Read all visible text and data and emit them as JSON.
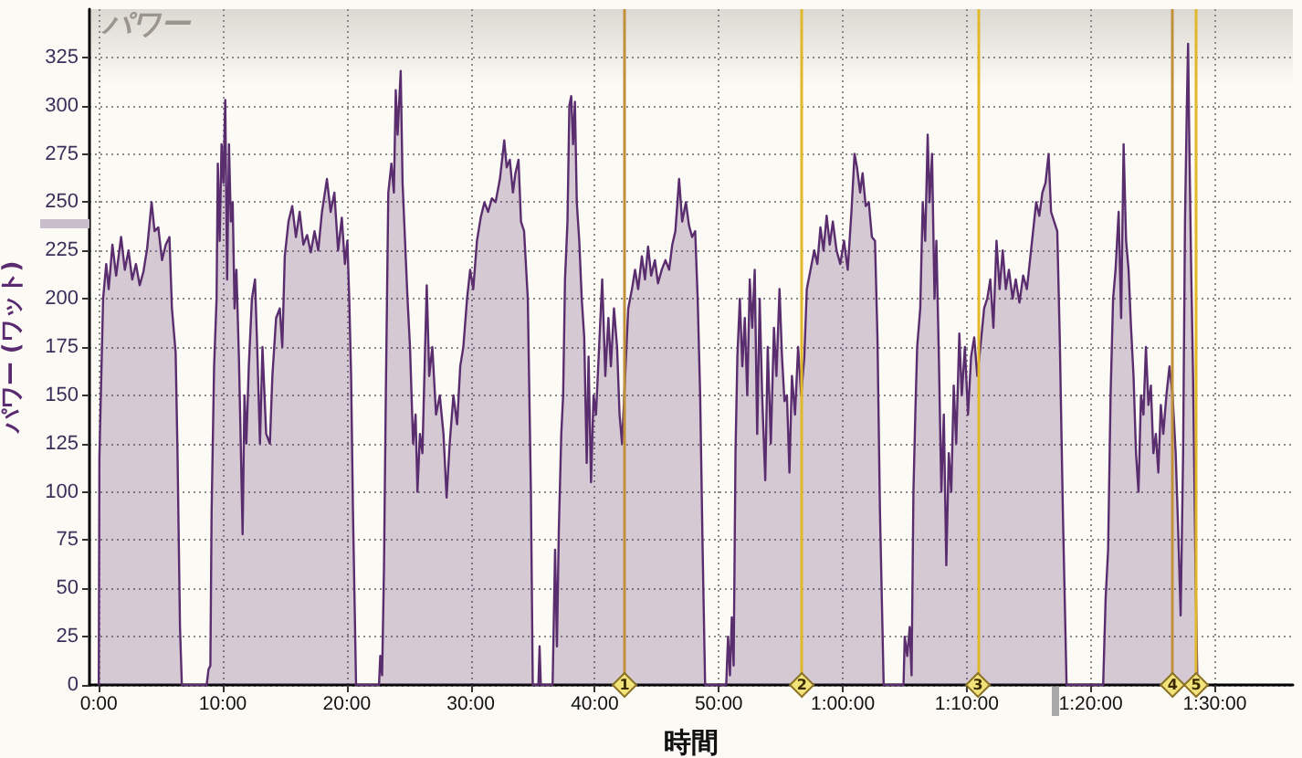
{
  "chart_data": {
    "type": "area",
    "title": "パワー",
    "xlabel": "時間",
    "ylabel": "パワー (ワット)",
    "x": [
      0,
      0.05,
      0.35,
      0.6,
      0.8,
      1.1,
      1.4,
      1.8,
      2.1,
      2.4,
      2.7,
      3.0,
      3.3,
      3.6,
      3.9,
      4.26,
      4.5,
      4.8,
      5.1,
      5.4,
      5.7,
      5.9,
      6.2,
      6.35,
      6.55,
      6.7,
      8.7,
      8.85,
      9.0,
      9.1,
      9.3,
      9.5,
      9.6,
      9.75,
      9.9,
      10.05,
      10.2,
      10.35,
      10.5,
      10.65,
      10.8,
      10.95,
      11.1,
      11.3,
      11.45,
      11.6,
      11.75,
      11.9,
      12.1,
      12.35,
      12.6,
      12.8,
      13.0,
      13.2,
      13.5,
      13.8,
      14.0,
      14.3,
      14.6,
      14.8,
      15.0,
      15.3,
      15.6,
      15.9,
      16.2,
      16.5,
      16.8,
      17.1,
      17.4,
      17.7,
      18.0,
      18.4,
      18.7,
      19.0,
      19.3,
      19.6,
      19.85,
      20.05,
      20.2,
      20.35,
      20.5,
      20.75,
      22.6,
      22.7,
      22.85,
      23.0,
      23.15,
      23.35,
      23.6,
      23.8,
      23.95,
      24.1,
      24.35,
      24.5,
      24.7,
      24.9,
      25.1,
      25.35,
      25.55,
      25.7,
      25.9,
      26.1,
      26.3,
      26.45,
      26.65,
      26.9,
      27.2,
      27.5,
      27.8,
      28.05,
      28.3,
      28.6,
      28.9,
      29.15,
      29.4,
      29.7,
      29.95,
      30.2,
      30.5,
      30.8,
      31.1,
      31.4,
      31.7,
      32.0,
      32.35,
      32.7,
      32.9,
      33.15,
      33.4,
      33.6,
      33.85,
      34.05,
      34.3,
      34.6,
      34.85,
      35.0,
      35.45,
      35.55,
      35.65,
      36.6,
      36.8,
      36.95,
      37.1,
      37.3,
      37.45,
      37.6,
      37.8,
      37.95,
      38.1,
      38.25,
      38.4,
      38.55,
      38.75,
      38.95,
      39.15,
      39.35,
      39.5,
      39.7,
      39.9,
      40.1,
      40.35,
      40.6,
      40.85,
      41.1,
      41.3,
      41.55,
      41.8,
      42.0,
      42.2,
      42.45,
      42.7,
      43.0,
      43.25,
      43.5,
      43.8,
      44.05,
      44.3,
      44.55,
      44.85,
      45.1,
      45.4,
      45.7,
      46.0,
      46.25,
      46.5,
      46.8,
      47.05,
      47.35,
      47.6,
      47.85,
      48.1,
      48.3,
      48.5,
      48.7,
      48.9,
      50.6,
      50.75,
      50.9,
      51.05,
      51.2,
      51.35,
      51.5,
      51.7,
      51.9,
      52.1,
      52.3,
      52.5,
      52.7,
      52.9,
      53.1,
      53.3,
      53.5,
      53.75,
      53.95,
      54.2,
      54.45,
      54.65,
      54.9,
      55.1,
      55.3,
      55.5,
      55.7,
      55.9,
      56.15,
      56.4,
      56.65,
      56.9,
      57.1,
      57.4,
      57.7,
      57.95,
      58.2,
      58.45,
      58.7,
      58.95,
      59.2,
      59.5,
      59.8,
      60.1,
      60.4,
      60.7,
      60.95,
      61.15,
      61.4,
      61.6,
      61.85,
      62.1,
      62.35,
      62.6,
      62.8,
      63.0,
      63.3,
      64.9,
      65.0,
      65.2,
      65.4,
      65.55,
      65.7,
      65.85,
      66.0,
      66.25,
      66.45,
      66.65,
      66.85,
      67.0,
      67.2,
      67.4,
      67.55,
      67.75,
      67.95,
      68.15,
      68.35,
      68.55,
      68.75,
      68.95,
      69.15,
      69.4,
      69.6,
      69.85,
      70.1,
      70.35,
      70.6,
      70.85,
      71.1,
      71.4,
      71.65,
      71.9,
      72.15,
      72.4,
      72.65,
      72.9,
      73.15,
      73.4,
      73.7,
      73.95,
      74.25,
      74.55,
      74.85,
      75.1,
      75.35,
      75.6,
      75.85,
      76.1,
      76.35,
      76.6,
      76.8,
      77.05,
      77.3,
      77.5,
      77.75,
      78.05,
      81.0,
      81.2,
      81.4,
      81.6,
      81.8,
      82.0,
      82.25,
      82.45,
      82.65,
      82.85,
      83.05,
      83.25,
      83.45,
      83.65,
      83.85,
      84.05,
      84.25,
      84.45,
      84.65,
      84.85,
      85.05,
      85.25,
      85.45,
      85.65,
      85.85,
      86.1,
      86.35,
      86.6,
      86.85,
      87.05,
      87.25,
      87.45,
      87.6,
      87.75,
      87.85,
      87.95,
      88.1,
      88.25,
      88.45,
      88.6
    ],
    "values": [
      0,
      118,
      200,
      218,
      205,
      228,
      212,
      232,
      215,
      225,
      210,
      218,
      207,
      214,
      226,
      250,
      235,
      237,
      220,
      228,
      232,
      195,
      172,
      120,
      30,
      0,
      0,
      8,
      10,
      90,
      165,
      200,
      270,
      230,
      280,
      260,
      303,
      210,
      280,
      240,
      250,
      195,
      215,
      170,
      125,
      78,
      150,
      125,
      165,
      200,
      210,
      170,
      125,
      175,
      130,
      125,
      160,
      190,
      195,
      175,
      222,
      240,
      248,
      232,
      245,
      228,
      233,
      224,
      235,
      225,
      245,
      262,
      245,
      255,
      225,
      242,
      218,
      230,
      200,
      160,
      90,
      0,
      0,
      15,
      5,
      60,
      150,
      255,
      270,
      255,
      308,
      285,
      318,
      260,
      230,
      200,
      175,
      125,
      140,
      100,
      130,
      120,
      170,
      207,
      160,
      175,
      140,
      150,
      130,
      97,
      125,
      150,
      135,
      165,
      175,
      200,
      215,
      205,
      230,
      242,
      250,
      245,
      252,
      250,
      262,
      282,
      268,
      272,
      255,
      265,
      272,
      240,
      235,
      200,
      100,
      0,
      0,
      20,
      0,
      0,
      70,
      20,
      80,
      130,
      150,
      210,
      240,
      300,
      305,
      280,
      302,
      250,
      230,
      200,
      180,
      115,
      170,
      105,
      150,
      140,
      175,
      210,
      160,
      190,
      165,
      195,
      175,
      140,
      125,
      160,
      195,
      205,
      215,
      205,
      222,
      210,
      227,
      212,
      220,
      208,
      215,
      220,
      215,
      228,
      235,
      262,
      240,
      250,
      238,
      232,
      235,
      200,
      150,
      70,
      0,
      0,
      25,
      5,
      35,
      10,
      120,
      170,
      200,
      165,
      190,
      150,
      210,
      185,
      215,
      130,
      200,
      150,
      106,
      175,
      125,
      185,
      160,
      205,
      170,
      147,
      150,
      110,
      160,
      140,
      175,
      150,
      170,
      205,
      215,
      225,
      218,
      237,
      225,
      243,
      228,
      240,
      225,
      218,
      230,
      215,
      245,
      275,
      268,
      255,
      265,
      248,
      250,
      232,
      230,
      180,
      90,
      0,
      0,
      25,
      15,
      30,
      5,
      100,
      140,
      175,
      195,
      250,
      230,
      285,
      250,
      275,
      200,
      230,
      170,
      100,
      140,
      62,
      120,
      100,
      155,
      125,
      182,
      150,
      175,
      140,
      170,
      180,
      160,
      175,
      195,
      200,
      210,
      185,
      230,
      205,
      225,
      205,
      215,
      200,
      210,
      198,
      212,
      205,
      220,
      235,
      250,
      243,
      255,
      260,
      275,
      245,
      240,
      235,
      180,
      90,
      0,
      0,
      45,
      70,
      150,
      200,
      215,
      245,
      190,
      280,
      230,
      215,
      185,
      160,
      120,
      100,
      150,
      140,
      175,
      145,
      155,
      120,
      130,
      110,
      145,
      130,
      150,
      165,
      150,
      120,
      80,
      36,
      120,
      240,
      300,
      332,
      280,
      215,
      160,
      60,
      0
    ],
    "color": "#5a2d6e",
    "marker": "none",
    "xlim": [
      -0.75,
      96.3
    ],
    "xticks": [
      {
        "value": 0,
        "label": "0:00"
      },
      {
        "value": 10,
        "label": "10:00"
      },
      {
        "value": 20,
        "label": "20:00"
      },
      {
        "value": 30,
        "label": "30:00"
      },
      {
        "value": 40,
        "label": "40:00"
      },
      {
        "value": 50,
        "label": "50:00"
      },
      {
        "value": 60,
        "label": "1:00:00"
      },
      {
        "value": 70,
        "label": "1:10:00"
      },
      {
        "value": 80,
        "label": "1:20:00"
      },
      {
        "value": 90,
        "label": "1:30:00"
      }
    ],
    "ylim": [
      0,
      350
    ],
    "yticks": [
      0,
      25,
      50,
      75,
      100,
      125,
      150,
      175,
      200,
      225,
      250,
      275,
      300,
      325
    ],
    "grid": true,
    "ref_lines": [
      {
        "axis": "x",
        "value": 42.4,
        "color": "#c0903a"
      },
      {
        "axis": "x",
        "value": 56.7,
        "color": "#e0b828"
      },
      {
        "axis": "x",
        "value": 70.9,
        "color": "#e0b828"
      },
      {
        "axis": "x",
        "value": 86.6,
        "color": "#c0903a"
      },
      {
        "axis": "x",
        "value": 88.5,
        "color": "#e0b828"
      }
    ],
    "annotations": [
      {
        "text": "1",
        "x": 42.4,
        "y": 0
      },
      {
        "text": "2",
        "x": 56.7,
        "y": 0
      },
      {
        "text": "3",
        "x": 70.9,
        "y": 0
      },
      {
        "text": "4",
        "x": 86.6,
        "y": 0
      },
      {
        "text": "5",
        "x": 88.5,
        "y": 0
      }
    ]
  }
}
